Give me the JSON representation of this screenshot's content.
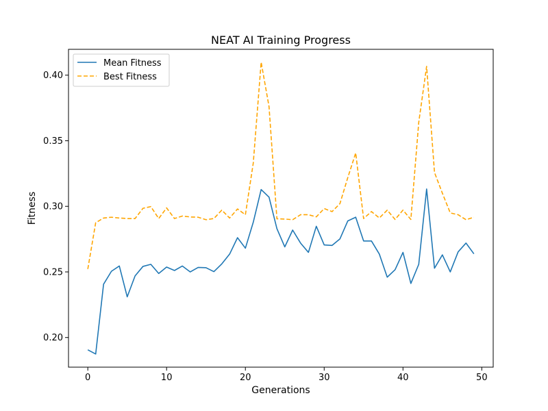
{
  "chart_data": {
    "type": "line",
    "title": "NEAT AI Training Progress",
    "xlabel": "Generations",
    "ylabel": "Fitness",
    "xlim": [
      -2.45,
      51.45
    ],
    "ylim": [
      0.1774,
      0.4197
    ],
    "xticks": [
      0,
      10,
      20,
      30,
      40,
      50
    ],
    "yticks": [
      0.2,
      0.25,
      0.3,
      0.35,
      0.4
    ],
    "ytick_labels": [
      "0.20",
      "0.25",
      "0.30",
      "0.35",
      "0.40"
    ],
    "grid": false,
    "legend_position": "top-left",
    "x": [
      0,
      1,
      2,
      3,
      4,
      5,
      6,
      7,
      8,
      9,
      10,
      11,
      12,
      13,
      14,
      15,
      16,
      17,
      18,
      19,
      20,
      21,
      22,
      23,
      24,
      25,
      26,
      27,
      28,
      29,
      30,
      31,
      32,
      33,
      34,
      35,
      36,
      37,
      38,
      39,
      40,
      41,
      42,
      43,
      44,
      45,
      46,
      47,
      48,
      49
    ],
    "series": [
      {
        "name": "Mean Fitness",
        "color": "#1f77b4",
        "style": "solid",
        "values": [
          0.1906,
          0.1874,
          0.2406,
          0.2505,
          0.2545,
          0.231,
          0.247,
          0.2542,
          0.2558,
          0.2488,
          0.2537,
          0.2511,
          0.2545,
          0.25,
          0.2534,
          0.2532,
          0.2502,
          0.2561,
          0.2636,
          0.2761,
          0.2681,
          0.2879,
          0.3128,
          0.307,
          0.283,
          0.2691,
          0.2819,
          0.272,
          0.2649,
          0.2848,
          0.2706,
          0.2702,
          0.2752,
          0.2889,
          0.2917,
          0.2736,
          0.2736,
          0.2636,
          0.246,
          0.2517,
          0.2649,
          0.2412,
          0.2558,
          0.3132,
          0.2528,
          0.263,
          0.25,
          0.2653,
          0.272,
          0.2638
        ]
      },
      {
        "name": "Best Fitness",
        "color": "#ffa500",
        "style": "dashed",
        "values": [
          0.2522,
          0.2875,
          0.2911,
          0.2917,
          0.2911,
          0.2907,
          0.2907,
          0.2985,
          0.2998,
          0.2907,
          0.2988,
          0.2907,
          0.2926,
          0.2919,
          0.2917,
          0.2898,
          0.2907,
          0.2971,
          0.2911,
          0.298,
          0.2936,
          0.333,
          0.4099,
          0.376,
          0.2905,
          0.2903,
          0.2898,
          0.2936,
          0.2936,
          0.292,
          0.2983,
          0.296,
          0.3021,
          0.322,
          0.3407,
          0.2907,
          0.296,
          0.2911,
          0.2971,
          0.29,
          0.2971,
          0.29,
          0.364,
          0.4067,
          0.3258,
          0.31,
          0.295,
          0.2936,
          0.2898,
          0.2917
        ]
      }
    ]
  }
}
